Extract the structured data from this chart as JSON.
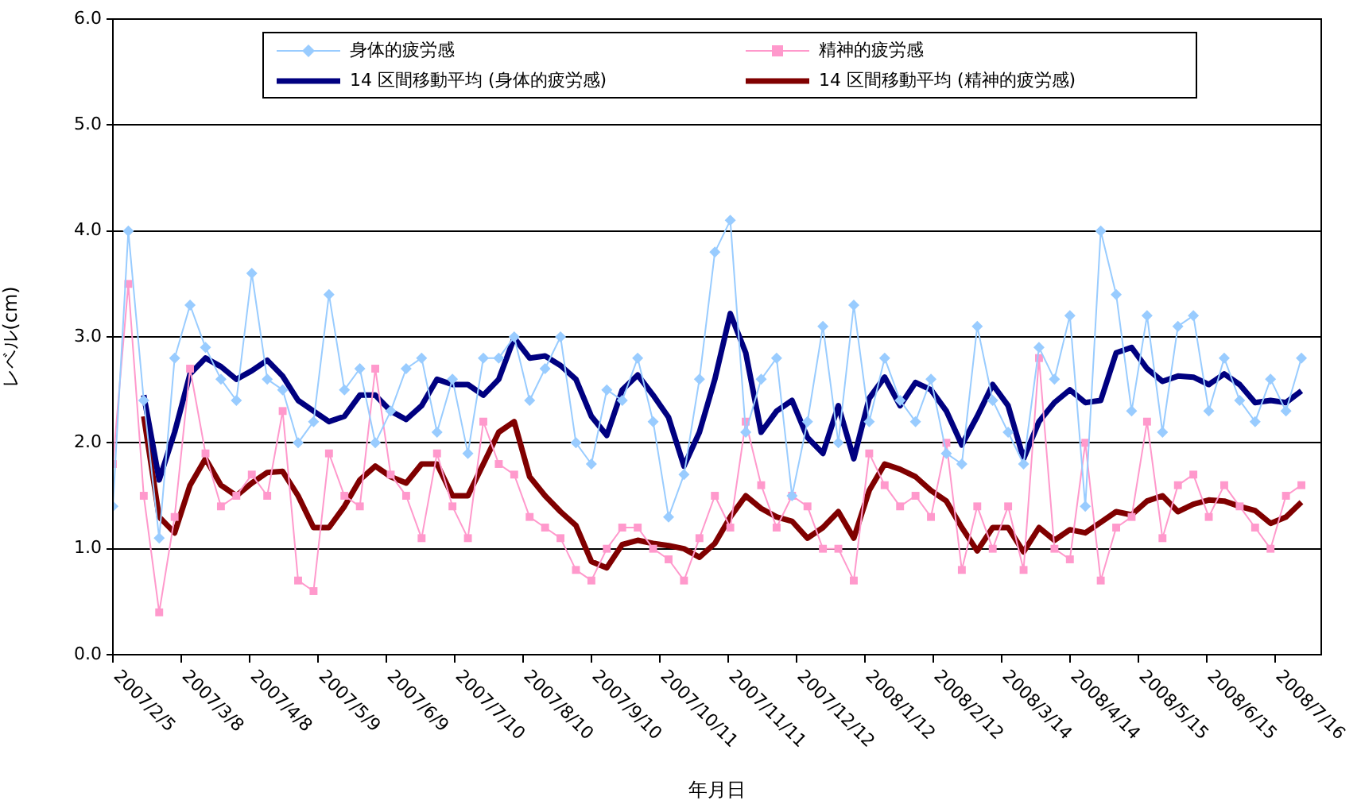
{
  "chart_data": {
    "type": "line",
    "xlabel": "年月日",
    "ylabel": "レベル(cm)",
    "legend": "top",
    "grid": "y",
    "xlim": [
      "2007-02-05",
      "2008-08-06"
    ],
    "xticks": [
      {
        "value": "2007-02-05",
        "label": "2007/2/5"
      },
      {
        "value": "2007-03-08",
        "label": "2007/3/8"
      },
      {
        "value": "2007-04-08",
        "label": "2007/4/8"
      },
      {
        "value": "2007-05-09",
        "label": "2007/5/9"
      },
      {
        "value": "2007-06-09",
        "label": "2007/6/9"
      },
      {
        "value": "2007-07-10",
        "label": "2007/7/10"
      },
      {
        "value": "2007-08-10",
        "label": "2007/8/10"
      },
      {
        "value": "2007-09-10",
        "label": "2007/9/10"
      },
      {
        "value": "2007-10-11",
        "label": "2007/10/11"
      },
      {
        "value": "2007-11-11",
        "label": "2007/11/11"
      },
      {
        "value": "2007-12-12",
        "label": "2007/12/12"
      },
      {
        "value": "2008-01-12",
        "label": "2008/1/12"
      },
      {
        "value": "2008-02-12",
        "label": "2008/2/12"
      },
      {
        "value": "2008-03-14",
        "label": "2008/3/14"
      },
      {
        "value": "2008-04-14",
        "label": "2008/4/14"
      },
      {
        "value": "2008-05-15",
        "label": "2008/5/15"
      },
      {
        "value": "2008-06-15",
        "label": "2008/6/15"
      },
      {
        "value": "2008-07-16",
        "label": "2008/7/16"
      }
    ],
    "ylim": [
      0,
      6
    ],
    "yticks": [
      {
        "value": 0,
        "label": "0.0"
      },
      {
        "value": 1,
        "label": "1.0"
      },
      {
        "value": 2,
        "label": "2.0"
      },
      {
        "value": 3,
        "label": "3.0"
      },
      {
        "value": 4,
        "label": "4.0"
      },
      {
        "value": 5,
        "label": "5.0"
      },
      {
        "value": 6,
        "label": "6.0"
      }
    ],
    "x": [
      "2007-02-05",
      "2007-02-12",
      "2007-02-19",
      "2007-02-26",
      "2007-03-05",
      "2007-03-12",
      "2007-03-19",
      "2007-03-26",
      "2007-04-02",
      "2007-04-09",
      "2007-04-16",
      "2007-04-23",
      "2007-04-30",
      "2007-05-07",
      "2007-05-14",
      "2007-05-21",
      "2007-05-28",
      "2007-06-04",
      "2007-06-11",
      "2007-06-18",
      "2007-06-25",
      "2007-07-02",
      "2007-07-09",
      "2007-07-16",
      "2007-07-23",
      "2007-07-30",
      "2007-08-06",
      "2007-08-13",
      "2007-08-20",
      "2007-08-27",
      "2007-09-03",
      "2007-09-10",
      "2007-09-17",
      "2007-09-24",
      "2007-10-01",
      "2007-10-08",
      "2007-10-15",
      "2007-10-22",
      "2007-10-29",
      "2007-11-05",
      "2007-11-12",
      "2007-11-19",
      "2007-11-26",
      "2007-12-03",
      "2007-12-10",
      "2007-12-17",
      "2007-12-24",
      "2007-12-31",
      "2008-01-07",
      "2008-01-14",
      "2008-01-21",
      "2008-01-28",
      "2008-02-04",
      "2008-02-11",
      "2008-02-18",
      "2008-02-25",
      "2008-03-03",
      "2008-03-10",
      "2008-03-17",
      "2008-03-24",
      "2008-03-31",
      "2008-04-07",
      "2008-04-14",
      "2008-04-21",
      "2008-04-28",
      "2008-05-05",
      "2008-05-12",
      "2008-05-19",
      "2008-05-26",
      "2008-06-02",
      "2008-06-09",
      "2008-06-16",
      "2008-06-23",
      "2008-06-30",
      "2008-07-07",
      "2008-07-14",
      "2008-07-21",
      "2008-07-28"
    ],
    "series": [
      {
        "name": "身体的疲労感",
        "color": "#99ccff",
        "marker": "diamond",
        "values": [
          1.4,
          4.0,
          2.4,
          1.1,
          2.8,
          3.3,
          2.9,
          2.6,
          2.4,
          3.6,
          2.6,
          2.5,
          2.0,
          2.2,
          3.4,
          2.5,
          2.7,
          2.0,
          2.3,
          2.7,
          2.8,
          2.1,
          2.6,
          1.9,
          2.8,
          2.8,
          3.0,
          2.4,
          2.7,
          3.0,
          2.0,
          1.8,
          2.5,
          2.4,
          2.8,
          2.2,
          1.3,
          1.7,
          2.6,
          3.8,
          4.1,
          2.1,
          2.6,
          2.8,
          1.5,
          2.2,
          3.1,
          2.0,
          3.3,
          2.2,
          2.8,
          2.4,
          2.2,
          2.6,
          1.9,
          1.8,
          3.1,
          2.4,
          2.1,
          1.8,
          2.9,
          2.6,
          3.2,
          1.4,
          4.0,
          3.4,
          2.3,
          3.2,
          2.1,
          3.1,
          3.2,
          2.3,
          2.8,
          2.4,
          2.2,
          2.6,
          2.3,
          2.8
        ]
      },
      {
        "name": "精神的疲労感",
        "color": "#ff99cc",
        "marker": "square",
        "values": [
          1.8,
          3.5,
          1.5,
          0.4,
          1.3,
          2.7,
          1.9,
          1.4,
          1.5,
          1.7,
          1.5,
          2.3,
          0.7,
          0.6,
          1.9,
          1.5,
          1.4,
          2.7,
          1.7,
          1.5,
          1.1,
          1.9,
          1.4,
          1.1,
          2.2,
          1.8,
          1.7,
          1.3,
          1.2,
          1.1,
          0.8,
          0.7,
          1.0,
          1.2,
          1.2,
          1.0,
          0.9,
          0.7,
          1.1,
          1.5,
          1.2,
          2.2,
          1.6,
          1.2,
          1.5,
          1.4,
          1.0,
          1.0,
          0.7,
          1.9,
          1.6,
          1.4,
          1.5,
          1.3,
          2.0,
          0.8,
          1.4,
          1.0,
          1.4,
          0.8,
          2.8,
          1.0,
          0.9,
          2.0,
          0.7,
          1.2,
          1.3,
          2.2,
          1.1,
          1.6,
          1.7,
          1.3,
          1.6,
          1.4,
          1.2,
          1.0,
          1.5,
          1.6
        ]
      },
      {
        "name": "14 区間移動平均 (身体的疲労感)",
        "color": "#000080",
        "marker": "none",
        "values": [
          null,
          null,
          2.45,
          1.65,
          2.1,
          2.65,
          2.8,
          2.72,
          2.6,
          2.68,
          2.78,
          2.63,
          2.4,
          2.3,
          2.2,
          2.25,
          2.45,
          2.45,
          2.3,
          2.22,
          2.35,
          2.6,
          2.55,
          2.55,
          2.45,
          2.6,
          2.99,
          2.8,
          2.82,
          2.73,
          2.6,
          2.25,
          2.07,
          2.5,
          2.64,
          2.45,
          2.24,
          1.78,
          2.1,
          2.6,
          3.22,
          2.85,
          2.1,
          2.3,
          2.4,
          2.05,
          1.9,
          2.35,
          1.85,
          2.42,
          2.62,
          2.35,
          2.57,
          2.5,
          2.3,
          1.98,
          2.25,
          2.55,
          2.35,
          1.85,
          2.2,
          2.38,
          2.5,
          2.38,
          2.4,
          2.85,
          2.9,
          2.7,
          2.58,
          2.63,
          2.62,
          2.55,
          2.65,
          2.55,
          2.38,
          2.4,
          2.38,
          2.49
        ]
      },
      {
        "name": "14 区間移動平均 (精神的疲労感)",
        "color": "#800000",
        "marker": "none",
        "values": [
          null,
          null,
          2.25,
          1.3,
          1.15,
          1.6,
          1.85,
          1.6,
          1.5,
          1.62,
          1.72,
          1.73,
          1.5,
          1.2,
          1.2,
          1.4,
          1.65,
          1.78,
          1.68,
          1.62,
          1.8,
          1.8,
          1.5,
          1.5,
          1.8,
          2.1,
          2.2,
          1.68,
          1.5,
          1.35,
          1.22,
          0.88,
          0.82,
          1.04,
          1.08,
          1.05,
          1.03,
          1.0,
          0.92,
          1.05,
          1.3,
          1.5,
          1.38,
          1.3,
          1.26,
          1.1,
          1.2,
          1.35,
          1.1,
          1.55,
          1.8,
          1.75,
          1.68,
          1.55,
          1.45,
          1.2,
          0.98,
          1.2,
          1.2,
          0.97,
          1.2,
          1.08,
          1.18,
          1.15,
          1.25,
          1.35,
          1.32,
          1.45,
          1.5,
          1.35,
          1.42,
          1.46,
          1.45,
          1.4,
          1.36,
          1.24,
          1.3,
          1.44
        ]
      }
    ]
  }
}
